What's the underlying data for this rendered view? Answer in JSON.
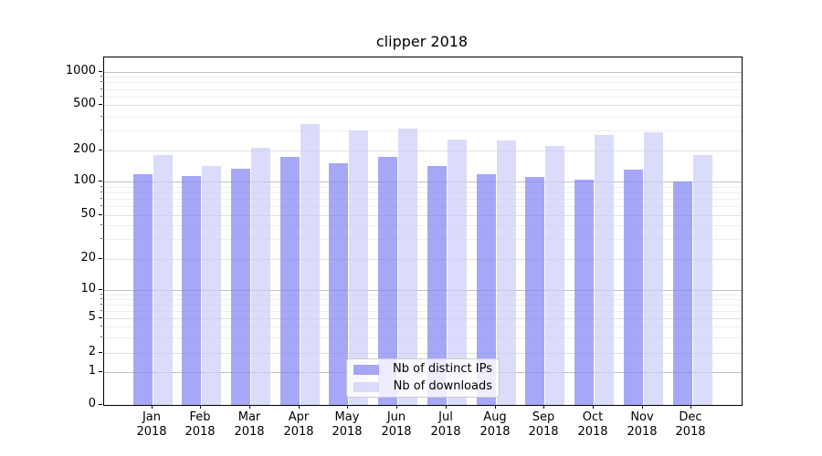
{
  "chart_data": {
    "type": "bar",
    "title": "clipper 2018",
    "categories": [
      "Jan",
      "Feb",
      "Mar",
      "Apr",
      "May",
      "Jun",
      "Jul",
      "Aug",
      "Sep",
      "Oct",
      "Nov",
      "Dec"
    ],
    "year": "2018",
    "yscale": "symlog",
    "y_tick_labels": [
      "0",
      "1",
      "2",
      "5",
      "10",
      "20",
      "50",
      "100",
      "200",
      "500",
      "1000"
    ],
    "y_ticks": [
      0,
      1,
      2,
      5,
      10,
      20,
      50,
      100,
      200,
      500,
      1000
    ],
    "ylim": [
      0,
      1350
    ],
    "grid": true,
    "legend_position": "lower center",
    "series": [
      {
        "name": "Nb of distinct IPs",
        "color": "#8282F3",
        "alpha": 0.7,
        "values": [
          120,
          115,
          135,
          175,
          153,
          175,
          145,
          120,
          112,
          105,
          133,
          101
        ]
      },
      {
        "name": "Nb of downloads",
        "color": "#CCCCF8",
        "alpha": 0.7,
        "values": [
          185,
          145,
          215,
          350,
          305,
          315,
          255,
          250,
          225,
          280,
          295,
          185
        ]
      }
    ]
  }
}
